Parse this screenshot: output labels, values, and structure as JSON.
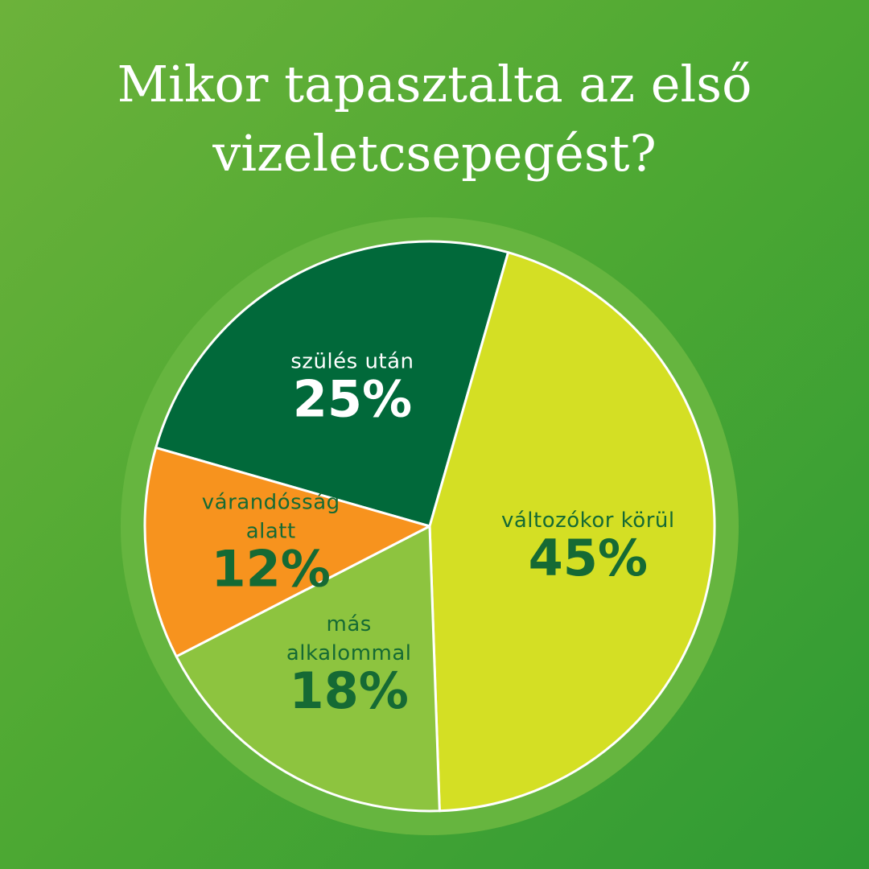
{
  "title": {
    "line1": "Mikor tapasztalta az első",
    "line2": "vizeletcsepegést?"
  },
  "colors": {
    "background": "#4fa933",
    "ring": "#66b53f",
    "dark_green_text": "#156a34",
    "white_text": "#ffffff"
  },
  "chart_data": {
    "type": "pie",
    "slices": [
      {
        "label_lines": [
          "szülés után"
        ],
        "percent_text": "25%",
        "value": 25,
        "color": "#01693a",
        "text_color": "#ffffff"
      },
      {
        "label_lines": [
          "változókor körül"
        ],
        "percent_text": "45%",
        "value": 45,
        "color": "#d4df24",
        "text_color": "#156a34"
      },
      {
        "label_lines": [
          "más",
          "alkalommal"
        ],
        "percent_text": "18%",
        "value": 18,
        "color": "#8dc43f",
        "text_color": "#156a34"
      },
      {
        "label_lines": [
          "várandósság",
          "alatt"
        ],
        "percent_text": "12%",
        "value": 12,
        "color": "#f7931e",
        "text_color": "#156a34"
      }
    ]
  }
}
